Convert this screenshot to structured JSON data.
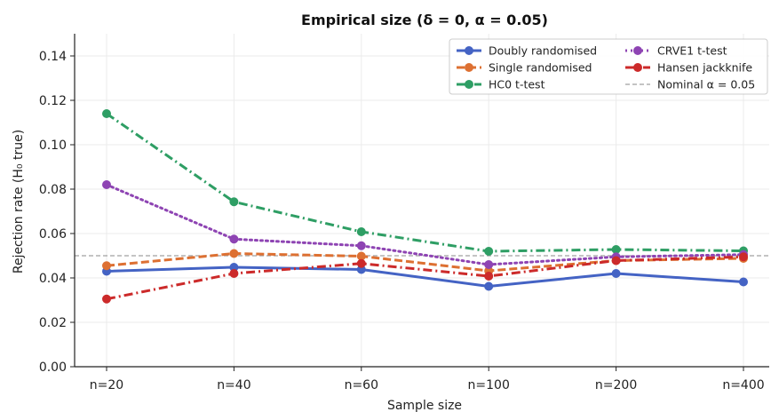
{
  "chart_data": {
    "type": "line",
    "title": "Empirical size (δ = 0, α = 0.05)",
    "xlabel": "Sample size",
    "ylabel": "Rejection rate (H₀ true)",
    "categories": [
      "n=20",
      "n=40",
      "n=60",
      "n=100",
      "n=200",
      "n=400"
    ],
    "ylim": [
      0,
      0.15
    ],
    "yticks": [
      "0.00",
      "0.02",
      "0.04",
      "0.06",
      "0.08",
      "0.10",
      "0.12",
      "0.14"
    ],
    "grid": true,
    "legend_position": "top-right",
    "series": [
      {
        "name": "Doubly randomised",
        "color": "#4463c4",
        "dash": "solid",
        "values": [
          0.043,
          0.0448,
          0.0438,
          0.0362,
          0.042,
          0.0382
        ]
      },
      {
        "name": "Single randomised",
        "color": "#dd7032",
        "dash": "dashed",
        "values": [
          0.0455,
          0.051,
          0.0498,
          0.0432,
          0.0478,
          0.0488
        ]
      },
      {
        "name": "HC0 t-test",
        "color": "#2e9e64",
        "dash": "dashdot",
        "values": [
          0.114,
          0.0743,
          0.0608,
          0.052,
          0.0528,
          0.0522
        ]
      },
      {
        "name": "CRVE1 t-test",
        "color": "#8e44b3",
        "dash": "dotted",
        "values": [
          0.082,
          0.0575,
          0.0545,
          0.046,
          0.0495,
          0.0505
        ]
      },
      {
        "name": "Hansen jackknife",
        "color": "#cc2a2a",
        "dash": "dashdot",
        "values": [
          0.0305,
          0.042,
          0.0465,
          0.0408,
          0.0478,
          0.0495
        ]
      }
    ],
    "reference_line": {
      "name": "Nominal α = 0.05",
      "value": 0.05,
      "color": "#a0a0a0"
    }
  }
}
